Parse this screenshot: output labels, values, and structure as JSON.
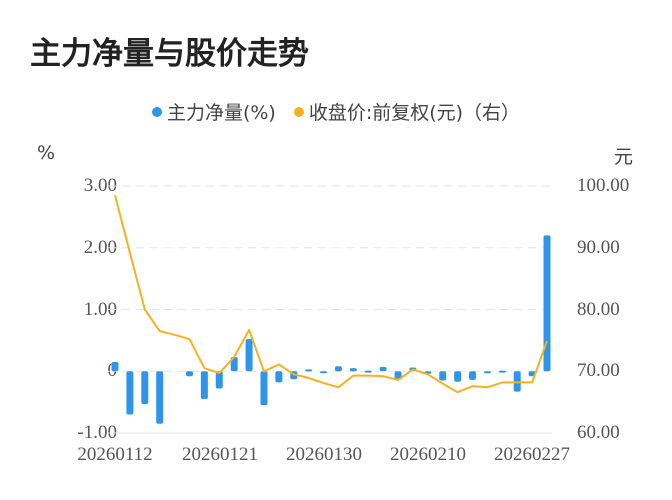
{
  "title": "主力净量与股价走势",
  "legend": [
    {
      "label": "主力净量(%)",
      "color": "#2f95ea"
    },
    {
      "label": "收盘价:前复权(元)（右）",
      "color": "#f5b120"
    }
  ],
  "axes": {
    "left_unit": "%",
    "right_unit": "元",
    "left_ticks": [
      "3.00",
      "2.00",
      "1.00",
      "0",
      "-1.00"
    ],
    "right_ticks": [
      "100.00",
      "90.00",
      "80.00",
      "70.00",
      "60.00"
    ],
    "x_ticks": [
      "20260112",
      "20260121",
      "20260130",
      "20260210",
      "20260227"
    ]
  },
  "chart_data": {
    "type": "bar+line",
    "title": "主力净量与股价走势",
    "xlabel": "",
    "ylabel": "%",
    "ylabel_right": "元",
    "ylim": [
      -1,
      3
    ],
    "ylim_right": [
      60,
      100
    ],
    "grid": true,
    "legend_position": "top",
    "x_tick_labels": {
      "0": "20260112",
      "7": "20260121",
      "14": "20260130",
      "21": "20260210",
      "28": "20260227"
    },
    "series": [
      {
        "name": "主力净量(%)",
        "type": "bar",
        "axis": "left",
        "color": "#2f95ea",
        "values": [
          0.15,
          -0.7,
          -0.53,
          -0.85,
          0.0,
          -0.08,
          -0.45,
          -0.28,
          0.23,
          0.52,
          -0.55,
          -0.18,
          -0.13,
          0.03,
          -0.03,
          0.08,
          0.05,
          0.01,
          0.07,
          -0.13,
          0.06,
          -0.04,
          -0.15,
          -0.17,
          -0.14,
          -0.03,
          0.01,
          -0.33,
          -0.08,
          2.2
        ]
      },
      {
        "name": "收盘价:前复权(元)（右）",
        "type": "line",
        "axis": "right",
        "color": "#f5b120",
        "values": [
          98.5,
          89.2,
          80.0,
          76.5,
          75.9,
          75.2,
          70.5,
          69.7,
          72.3,
          76.7,
          70.0,
          71.1,
          69.5,
          68.9,
          68.1,
          67.4,
          69.3,
          69.3,
          69.2,
          68.6,
          70.3,
          69.5,
          68.0,
          66.6,
          67.6,
          67.4,
          68.2,
          68.2,
          68.2,
          74.9
        ]
      }
    ]
  }
}
